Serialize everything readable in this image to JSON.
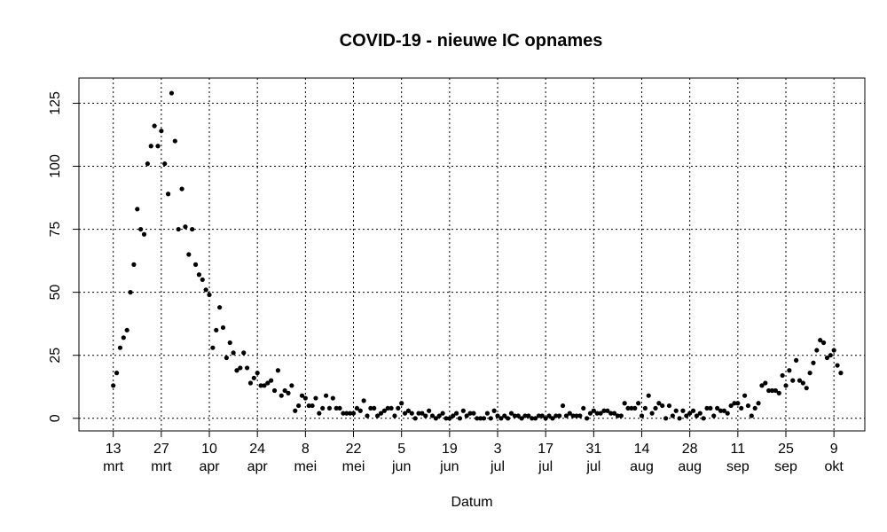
{
  "chart_data": {
    "type": "scatter",
    "title": "COVID-19 - nieuwe IC opnames",
    "xlabel": "Datum",
    "ylabel": "",
    "grid": true,
    "ylim": [
      -5,
      135
    ],
    "xlim": [
      "2020-03-03",
      "2020-10-18"
    ],
    "yticks": [
      0,
      25,
      50,
      75,
      100,
      125
    ],
    "xticks": [
      {
        "date": "2020-03-13",
        "day": "13",
        "month": "mrt"
      },
      {
        "date": "2020-03-27",
        "day": "27",
        "month": "mrt"
      },
      {
        "date": "2020-04-10",
        "day": "10",
        "month": "apr"
      },
      {
        "date": "2020-04-24",
        "day": "24",
        "month": "apr"
      },
      {
        "date": "2020-05-08",
        "day": "8",
        "month": "mei"
      },
      {
        "date": "2020-05-22",
        "day": "22",
        "month": "mei"
      },
      {
        "date": "2020-06-05",
        "day": "5",
        "month": "jun"
      },
      {
        "date": "2020-06-19",
        "day": "19",
        "month": "jun"
      },
      {
        "date": "2020-07-03",
        "day": "3",
        "month": "jul"
      },
      {
        "date": "2020-07-17",
        "day": "17",
        "month": "jul"
      },
      {
        "date": "2020-07-31",
        "day": "31",
        "month": "jul"
      },
      {
        "date": "2020-08-14",
        "day": "14",
        "month": "aug"
      },
      {
        "date": "2020-08-28",
        "day": "28",
        "month": "aug"
      },
      {
        "date": "2020-09-11",
        "day": "11",
        "month": "sep"
      },
      {
        "date": "2020-09-25",
        "day": "25",
        "month": "sep"
      },
      {
        "date": "2020-10-09",
        "day": "9",
        "month": "okt"
      }
    ],
    "series": [
      {
        "points": [
          [
            "2020-03-13",
            13
          ],
          [
            "2020-03-14",
            18
          ],
          [
            "2020-03-15",
            28
          ],
          [
            "2020-03-16",
            32
          ],
          [
            "2020-03-17",
            35
          ],
          [
            "2020-03-18",
            50
          ],
          [
            "2020-03-19",
            61
          ],
          [
            "2020-03-20",
            83
          ],
          [
            "2020-03-21",
            75
          ],
          [
            "2020-03-22",
            73
          ],
          [
            "2020-03-23",
            101
          ],
          [
            "2020-03-24",
            108
          ],
          [
            "2020-03-25",
            116
          ],
          [
            "2020-03-26",
            108
          ],
          [
            "2020-03-27",
            114
          ],
          [
            "2020-03-28",
            101
          ],
          [
            "2020-03-29",
            89
          ],
          [
            "2020-03-30",
            129
          ],
          [
            "2020-03-31",
            110
          ],
          [
            "2020-04-01",
            75
          ],
          [
            "2020-04-02",
            91
          ],
          [
            "2020-04-03",
            76
          ],
          [
            "2020-04-04",
            65
          ],
          [
            "2020-04-05",
            75
          ],
          [
            "2020-04-06",
            61
          ],
          [
            "2020-04-07",
            57
          ],
          [
            "2020-04-08",
            55
          ],
          [
            "2020-04-09",
            51
          ],
          [
            "2020-04-10",
            49
          ],
          [
            "2020-04-11",
            28
          ],
          [
            "2020-04-12",
            35
          ],
          [
            "2020-04-13",
            44
          ],
          [
            "2020-04-14",
            36
          ],
          [
            "2020-04-15",
            24
          ],
          [
            "2020-04-16",
            30
          ],
          [
            "2020-04-17",
            26
          ],
          [
            "2020-04-18",
            19
          ],
          [
            "2020-04-19",
            20
          ],
          [
            "2020-04-20",
            26
          ],
          [
            "2020-04-21",
            20
          ],
          [
            "2020-04-22",
            14
          ],
          [
            "2020-04-23",
            16
          ],
          [
            "2020-04-24",
            18
          ],
          [
            "2020-04-25",
            13
          ],
          [
            "2020-04-26",
            13
          ],
          [
            "2020-04-27",
            14
          ],
          [
            "2020-04-28",
            15
          ],
          [
            "2020-04-29",
            11
          ],
          [
            "2020-04-30",
            19
          ],
          [
            "2020-05-01",
            9
          ],
          [
            "2020-05-02",
            11
          ],
          [
            "2020-05-03",
            10
          ],
          [
            "2020-05-04",
            13
          ],
          [
            "2020-05-05",
            3
          ],
          [
            "2020-05-06",
            5
          ],
          [
            "2020-05-07",
            9
          ],
          [
            "2020-05-08",
            8
          ],
          [
            "2020-05-09",
            5
          ],
          [
            "2020-05-10",
            5
          ],
          [
            "2020-05-11",
            8
          ],
          [
            "2020-05-12",
            2
          ],
          [
            "2020-05-13",
            4
          ],
          [
            "2020-05-14",
            9
          ],
          [
            "2020-05-15",
            4
          ],
          [
            "2020-05-16",
            8
          ],
          [
            "2020-05-17",
            4
          ],
          [
            "2020-05-18",
            4
          ],
          [
            "2020-05-19",
            2
          ],
          [
            "2020-05-20",
            2
          ],
          [
            "2020-05-21",
            2
          ],
          [
            "2020-05-22",
            2
          ],
          [
            "2020-05-23",
            4
          ],
          [
            "2020-05-24",
            3
          ],
          [
            "2020-05-25",
            7
          ],
          [
            "2020-05-26",
            1
          ],
          [
            "2020-05-27",
            4
          ],
          [
            "2020-05-28",
            4
          ],
          [
            "2020-05-29",
            1
          ],
          [
            "2020-05-30",
            2
          ],
          [
            "2020-05-31",
            3
          ],
          [
            "2020-06-01",
            4
          ],
          [
            "2020-06-02",
            4
          ],
          [
            "2020-06-03",
            1
          ],
          [
            "2020-06-04",
            4
          ],
          [
            "2020-06-05",
            6
          ],
          [
            "2020-06-06",
            2
          ],
          [
            "2020-06-07",
            3
          ],
          [
            "2020-06-08",
            2
          ],
          [
            "2020-06-09",
            0
          ],
          [
            "2020-06-10",
            2
          ],
          [
            "2020-06-11",
            2
          ],
          [
            "2020-06-12",
            1
          ],
          [
            "2020-06-13",
            3
          ],
          [
            "2020-06-14",
            1
          ],
          [
            "2020-06-15",
            0
          ],
          [
            "2020-06-16",
            1
          ],
          [
            "2020-06-17",
            2
          ],
          [
            "2020-06-18",
            0
          ],
          [
            "2020-06-19",
            0
          ],
          [
            "2020-06-20",
            1
          ],
          [
            "2020-06-21",
            2
          ],
          [
            "2020-06-22",
            0
          ],
          [
            "2020-06-23",
            3
          ],
          [
            "2020-06-24",
            1
          ],
          [
            "2020-06-25",
            2
          ],
          [
            "2020-06-26",
            2
          ],
          [
            "2020-06-27",
            0
          ],
          [
            "2020-06-28",
            0
          ],
          [
            "2020-06-29",
            0
          ],
          [
            "2020-06-30",
            2
          ],
          [
            "2020-07-01",
            0
          ],
          [
            "2020-07-02",
            3
          ],
          [
            "2020-07-03",
            1
          ],
          [
            "2020-07-04",
            0
          ],
          [
            "2020-07-05",
            1
          ],
          [
            "2020-07-06",
            0
          ],
          [
            "2020-07-07",
            2
          ],
          [
            "2020-07-08",
            1
          ],
          [
            "2020-07-09",
            1
          ],
          [
            "2020-07-10",
            0
          ],
          [
            "2020-07-11",
            1
          ],
          [
            "2020-07-12",
            1
          ],
          [
            "2020-07-13",
            0
          ],
          [
            "2020-07-14",
            0
          ],
          [
            "2020-07-15",
            1
          ],
          [
            "2020-07-16",
            1
          ],
          [
            "2020-07-17",
            0
          ],
          [
            "2020-07-18",
            1
          ],
          [
            "2020-07-19",
            0
          ],
          [
            "2020-07-20",
            1
          ],
          [
            "2020-07-21",
            1
          ],
          [
            "2020-07-22",
            5
          ],
          [
            "2020-07-23",
            1
          ],
          [
            "2020-07-24",
            2
          ],
          [
            "2020-07-25",
            1
          ],
          [
            "2020-07-26",
            1
          ],
          [
            "2020-07-27",
            1
          ],
          [
            "2020-07-28",
            4
          ],
          [
            "2020-07-29",
            0
          ],
          [
            "2020-07-30",
            2
          ],
          [
            "2020-07-31",
            3
          ],
          [
            "2020-08-01",
            2
          ],
          [
            "2020-08-02",
            2
          ],
          [
            "2020-08-03",
            3
          ],
          [
            "2020-08-04",
            3
          ],
          [
            "2020-08-05",
            2
          ],
          [
            "2020-08-06",
            2
          ],
          [
            "2020-08-07",
            1
          ],
          [
            "2020-08-08",
            1
          ],
          [
            "2020-08-09",
            6
          ],
          [
            "2020-08-10",
            4
          ],
          [
            "2020-08-11",
            4
          ],
          [
            "2020-08-12",
            4
          ],
          [
            "2020-08-13",
            6
          ],
          [
            "2020-08-14",
            1
          ],
          [
            "2020-08-15",
            4
          ],
          [
            "2020-08-16",
            9
          ],
          [
            "2020-08-17",
            2
          ],
          [
            "2020-08-18",
            4
          ],
          [
            "2020-08-19",
            6
          ],
          [
            "2020-08-20",
            5
          ],
          [
            "2020-08-21",
            0
          ],
          [
            "2020-08-22",
            5
          ],
          [
            "2020-08-23",
            1
          ],
          [
            "2020-08-24",
            3
          ],
          [
            "2020-08-25",
            0
          ],
          [
            "2020-08-26",
            3
          ],
          [
            "2020-08-27",
            1
          ],
          [
            "2020-08-28",
            2
          ],
          [
            "2020-08-29",
            3
          ],
          [
            "2020-08-30",
            1
          ],
          [
            "2020-08-31",
            2
          ],
          [
            "2020-09-01",
            0
          ],
          [
            "2020-09-02",
            4
          ],
          [
            "2020-09-03",
            4
          ],
          [
            "2020-09-04",
            1
          ],
          [
            "2020-09-05",
            4
          ],
          [
            "2020-09-06",
            3
          ],
          [
            "2020-09-07",
            3
          ],
          [
            "2020-09-08",
            2
          ],
          [
            "2020-09-09",
            5
          ],
          [
            "2020-09-10",
            6
          ],
          [
            "2020-09-11",
            6
          ],
          [
            "2020-09-12",
            4
          ],
          [
            "2020-09-13",
            9
          ],
          [
            "2020-09-14",
            5
          ],
          [
            "2020-09-15",
            1
          ],
          [
            "2020-09-16",
            4
          ],
          [
            "2020-09-17",
            6
          ],
          [
            "2020-09-18",
            13
          ],
          [
            "2020-09-19",
            14
          ],
          [
            "2020-09-20",
            11
          ],
          [
            "2020-09-21",
            11
          ],
          [
            "2020-09-22",
            11
          ],
          [
            "2020-09-23",
            10
          ],
          [
            "2020-09-24",
            17
          ],
          [
            "2020-09-25",
            13
          ],
          [
            "2020-09-26",
            19
          ],
          [
            "2020-09-27",
            15
          ],
          [
            "2020-09-28",
            23
          ],
          [
            "2020-09-29",
            15
          ],
          [
            "2020-09-30",
            14
          ],
          [
            "2020-10-01",
            12
          ],
          [
            "2020-10-02",
            18
          ],
          [
            "2020-10-03",
            22
          ],
          [
            "2020-10-04",
            27
          ],
          [
            "2020-10-05",
            31
          ],
          [
            "2020-10-06",
            30
          ],
          [
            "2020-10-07",
            24
          ],
          [
            "2020-10-08",
            25
          ],
          [
            "2020-10-09",
            27
          ],
          [
            "2020-10-10",
            21
          ],
          [
            "2020-10-11",
            18
          ]
        ]
      }
    ]
  }
}
